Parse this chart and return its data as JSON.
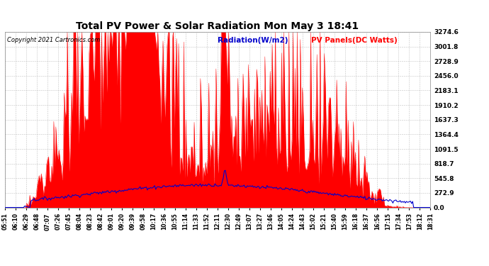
{
  "title": "Total PV Power & Solar Radiation Mon May 3 18:41",
  "copyright": "Copyright 2021 Cartronics.com",
  "legend_radiation": "Radiation(W/m2)",
  "legend_pv": "PV Panels(DC Watts)",
  "yticks": [
    0.0,
    272.9,
    545.8,
    818.7,
    1091.5,
    1364.4,
    1637.3,
    1910.2,
    2183.1,
    2456.0,
    2728.9,
    3001.8,
    3274.6
  ],
  "ymax": 3274.6,
  "bg_color": "#ffffff",
  "grid_color": "#aaaaaa",
  "pv_color": "#ff0000",
  "radiation_color": "#0000cc",
  "title_color": "#000000",
  "copyright_color": "#000000",
  "time_labels": [
    "05:51",
    "06:10",
    "06:29",
    "06:48",
    "07:07",
    "07:26",
    "07:45",
    "08:04",
    "08:23",
    "08:42",
    "09:01",
    "09:20",
    "09:39",
    "09:58",
    "10:17",
    "10:36",
    "10:55",
    "11:14",
    "11:33",
    "11:52",
    "12:11",
    "12:30",
    "12:49",
    "13:07",
    "13:27",
    "13:46",
    "14:05",
    "14:24",
    "14:43",
    "15:02",
    "15:21",
    "15:40",
    "15:59",
    "16:18",
    "16:37",
    "16:56",
    "17:15",
    "17:34",
    "17:53",
    "18:12",
    "18:31"
  ]
}
